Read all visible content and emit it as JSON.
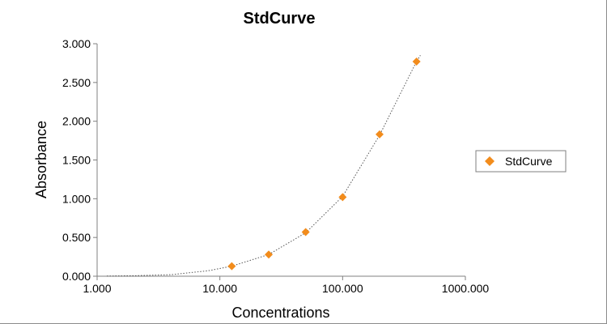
{
  "chart_data": {
    "type": "scatter",
    "title": "StdCurve",
    "xlabel": "Concentrations",
    "ylabel": "Absorbance",
    "x_scale": "log",
    "xlim": [
      1,
      1000
    ],
    "ylim": [
      0,
      3
    ],
    "x_ticks": [
      {
        "value": 1,
        "label": "1.000"
      },
      {
        "value": 10,
        "label": "10.000"
      },
      {
        "value": 100,
        "label": "100.000"
      },
      {
        "value": 1000,
        "label": "1000.000"
      }
    ],
    "y_ticks": [
      {
        "value": 0,
        "label": "0.000"
      },
      {
        "value": 0.5,
        "label": "0.500"
      },
      {
        "value": 1,
        "label": "1.000"
      },
      {
        "value": 1.5,
        "label": "1.500"
      },
      {
        "value": 2,
        "label": "2.000"
      },
      {
        "value": 2.5,
        "label": "2.500"
      },
      {
        "value": 3,
        "label": "3.000"
      }
    ],
    "grid": false,
    "legend": {
      "position": "right",
      "entries": [
        "StdCurve"
      ]
    },
    "series": [
      {
        "name": "StdCurve",
        "color": "#f28c1c",
        "marker": "diamond",
        "x": [
          12.5,
          25,
          50,
          100,
          200,
          400
        ],
        "y": [
          0.13,
          0.28,
          0.57,
          1.02,
          1.83,
          2.77
        ]
      }
    ],
    "trendline": {
      "style": "dotted",
      "color": "#555555",
      "x": [
        1.2,
        2,
        4,
        8,
        12.5,
        25,
        50,
        100,
        200,
        400,
        430
      ],
      "y": [
        0.002,
        0.006,
        0.02,
        0.07,
        0.13,
        0.28,
        0.56,
        1.03,
        1.82,
        2.77,
        2.85
      ]
    }
  }
}
